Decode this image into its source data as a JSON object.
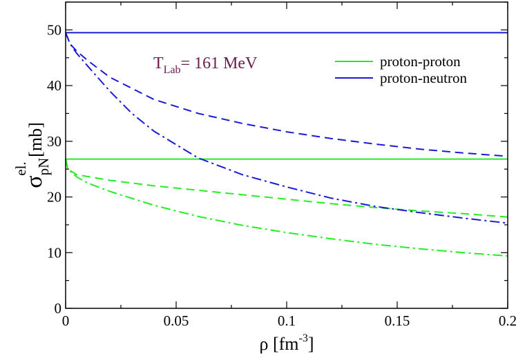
{
  "chart_data": {
    "type": "line",
    "xlabel": {
      "main": "ρ [fm",
      "sup": "-3",
      "end": "]"
    },
    "ylabel": {
      "main": "σ",
      "sub": "pN",
      "sup": "el.",
      "end": " [mb]"
    },
    "xlim": [
      0,
      0.2
    ],
    "ylim": [
      0,
      55
    ],
    "xticks": [
      0,
      0.05,
      0.1,
      0.15,
      0.2
    ],
    "xtick_labels": [
      "0",
      "0.05",
      "0.1",
      "0.15",
      "0.2"
    ],
    "yticks": [
      0,
      10,
      20,
      30,
      40,
      50
    ],
    "ytick_labels": [
      "0",
      "10",
      "20",
      "30",
      "40",
      "50"
    ],
    "annotation": {
      "prefix": "T",
      "sub": "Lab",
      "rest": "= 161 MeV"
    },
    "legend_position": "top-right",
    "legend": [
      {
        "label": "proton-proton",
        "color": "#22ee22"
      },
      {
        "label": "proton-neutron",
        "color": "#1a1ad6"
      }
    ],
    "series": [
      {
        "group": "proton-proton",
        "style": "solid",
        "color": "#22ee22",
        "x": [
          0,
          0.2
        ],
        "y": [
          26.8,
          26.8
        ]
      },
      {
        "group": "proton-proton",
        "style": "dashed",
        "color": "#22ee22",
        "x": [
          0,
          0.001,
          0.005,
          0.02,
          0.04,
          0.06,
          0.08,
          0.1,
          0.12,
          0.14,
          0.16,
          0.18,
          0.2
        ],
        "y": [
          26.8,
          25.0,
          24.0,
          23.0,
          22.0,
          21.2,
          20.4,
          19.6,
          18.8,
          18.1,
          17.5,
          17.0,
          16.4
        ]
      },
      {
        "group": "proton-proton",
        "style": "dashdot",
        "color": "#22ee22",
        "x": [
          0,
          0.001,
          0.005,
          0.01,
          0.02,
          0.04,
          0.06,
          0.08,
          0.1,
          0.12,
          0.14,
          0.16,
          0.18,
          0.2
        ],
        "y": [
          26.8,
          25.0,
          23.6,
          22.5,
          21.0,
          18.5,
          16.5,
          14.9,
          13.6,
          12.5,
          11.5,
          10.7,
          10.0,
          9.4
        ]
      },
      {
        "group": "proton-neutron",
        "style": "solid",
        "color": "#1a1ad6",
        "x": [
          0,
          0.2
        ],
        "y": [
          49.5,
          49.5
        ]
      },
      {
        "group": "proton-neutron",
        "style": "dashed",
        "color": "#1a1ad6",
        "x": [
          0,
          0.002,
          0.005,
          0.01,
          0.02,
          0.04,
          0.06,
          0.08,
          0.1,
          0.12,
          0.14,
          0.16,
          0.18,
          0.2
        ],
        "y": [
          49.5,
          47.5,
          46.2,
          44.5,
          41.5,
          37.5,
          35.0,
          33.2,
          31.7,
          30.5,
          29.5,
          28.6,
          27.9,
          27.3
        ]
      },
      {
        "group": "proton-neutron",
        "style": "dashdot",
        "color": "#1a1ad6",
        "x": [
          0,
          0.002,
          0.005,
          0.01,
          0.02,
          0.03,
          0.04,
          0.06,
          0.08,
          0.1,
          0.12,
          0.14,
          0.16,
          0.18,
          0.2
        ],
        "y": [
          49.5,
          47.5,
          45.8,
          43.5,
          39.0,
          35.0,
          31.8,
          27.0,
          24.0,
          21.8,
          19.8,
          18.3,
          17.2,
          16.2,
          15.3
        ]
      }
    ]
  }
}
